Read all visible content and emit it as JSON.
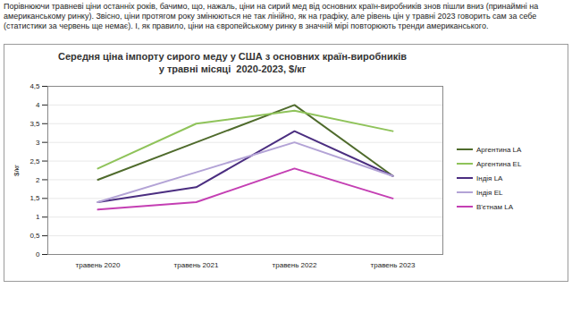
{
  "text": "Порівнюючи травневі ціни останніх років, бачимо, що, нажаль, ціни на сирий мед від основних країн-виробників знов пішли вниз (принаймні на американському ринку). Звісно, ціни протягом року змінюються не так лінійно, як на графіку, але рівень цін у травні 2023 говорить сам за себе (статистики за червень ще немає). І, як правило, ціни на європейському ринку в значній мірі повторюють тренди американського.",
  "chart_data": {
    "type": "line",
    "title": "Середня ціна імпорту сирого меду у США з основних країн-виробників\nу травні місяці  2020-2023, $/кг",
    "y_label": "$/кг",
    "categories": [
      "травень 2020",
      "травень 2021",
      "травень 2022",
      "травень 2023"
    ],
    "series": [
      {
        "name": "Аргентина LA",
        "color": "#4f6b2c",
        "values": [
          2.0,
          3.0,
          4.0,
          2.1
        ]
      },
      {
        "name": "Аргентина EL",
        "color": "#8fc35a",
        "values": [
          2.3,
          3.5,
          3.85,
          3.3
        ]
      },
      {
        "name": "Індія LA",
        "color": "#4b2e80",
        "values": [
          1.4,
          1.8,
          3.3,
          2.1
        ]
      },
      {
        "name": "Індія EL",
        "color": "#b3a3d6",
        "values": [
          1.4,
          2.2,
          3.0,
          2.1
        ]
      },
      {
        "name": "В'єтнам LA",
        "color": "#c43fb3",
        "values": [
          1.2,
          1.4,
          2.3,
          1.5
        ]
      }
    ],
    "ylim": [
      0,
      4.5
    ],
    "yticks": [
      0,
      {
        "value": 0.5,
        "label": "0,5"
      },
      1,
      {
        "value": 1.5,
        "label": "1,5"
      },
      2,
      {
        "value": 2.5,
        "label": "2,5"
      },
      3,
      {
        "value": 3.5,
        "label": "3,5"
      },
      4,
      {
        "value": 4.5,
        "label": "4,5"
      }
    ],
    "grid": true,
    "legend": "right",
    "line_style": "solid"
  }
}
